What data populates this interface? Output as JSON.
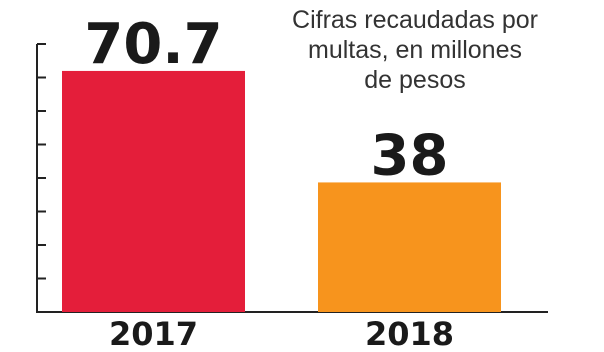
{
  "chart_data": {
    "type": "bar",
    "title_lines": [
      "Cifras recaudadas por",
      "multas, en millones",
      "de pesos"
    ],
    "categories": [
      "2017",
      "2018"
    ],
    "values": [
      70.7,
      38
    ],
    "value_labels": [
      "70.7",
      "38"
    ],
    "xlabel": "",
    "ylabel": "",
    "ylim": [
      0,
      78.6
    ],
    "grid": false,
    "legend": "none",
    "colors": [
      "#e41e3a",
      "#f7941d"
    ],
    "axis_color": "#222222"
  }
}
